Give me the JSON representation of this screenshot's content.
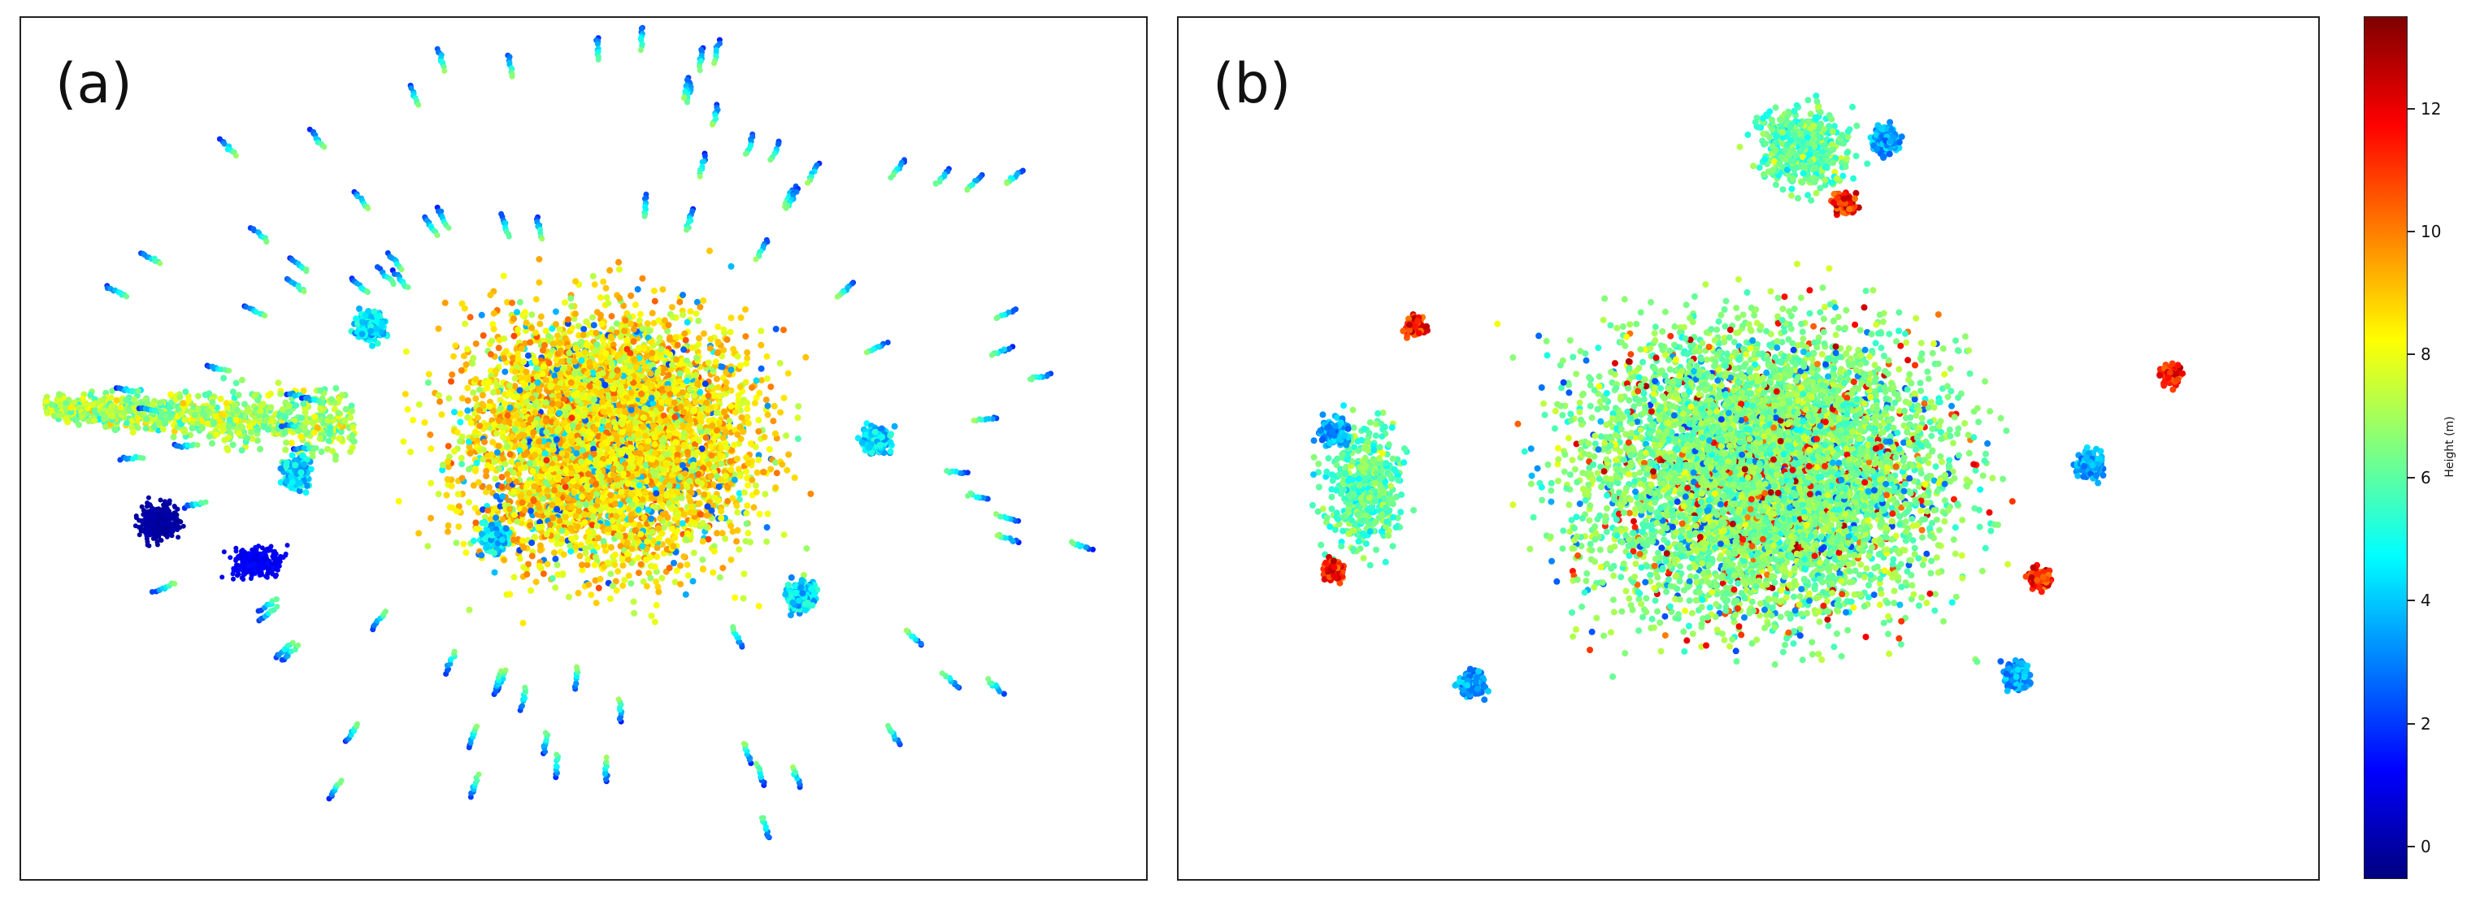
{
  "chart_data": [
    {
      "type": "scatter",
      "panel_label": "(a)",
      "description_values": "top-down view of a canopy point cloud coloured by height",
      "colorscale": "jet",
      "value_range": [
        -0.5,
        13.5
      ],
      "dominant_heights_m": [
        7,
        9,
        10,
        11
      ],
      "series": [
        {
          "name": "",
          "height_m_range": [
            -0.5,
            13.5
          ]
        }
      ]
    },
    {
      "type": "scatter",
      "panel_label": "(b)",
      "colorscale": "jet",
      "value_range": [
        -0.5,
        13.5
      ],
      "dominant_heights_m": [
        5,
        6,
        7,
        8
      ],
      "series": [
        {
          "name": "",
          "height_m_range": [
            -0.5,
            13.5
          ]
        }
      ]
    }
  ],
  "colorbar": {
    "title": "Height (m)",
    "min": -0.5,
    "max": 13.5,
    "ticks": [
      "0",
      "2",
      "4",
      "6",
      "8",
      "10",
      "12"
    ],
    "tick_values": [
      0,
      2,
      4,
      6,
      8,
      10,
      12
    ],
    "colors": [
      "#00007f",
      "#0000ff",
      "#007fff",
      "#00ffff",
      "#7fff7f",
      "#ffff00",
      "#ff7f00",
      "#ff0000",
      "#7f0000"
    ]
  }
}
